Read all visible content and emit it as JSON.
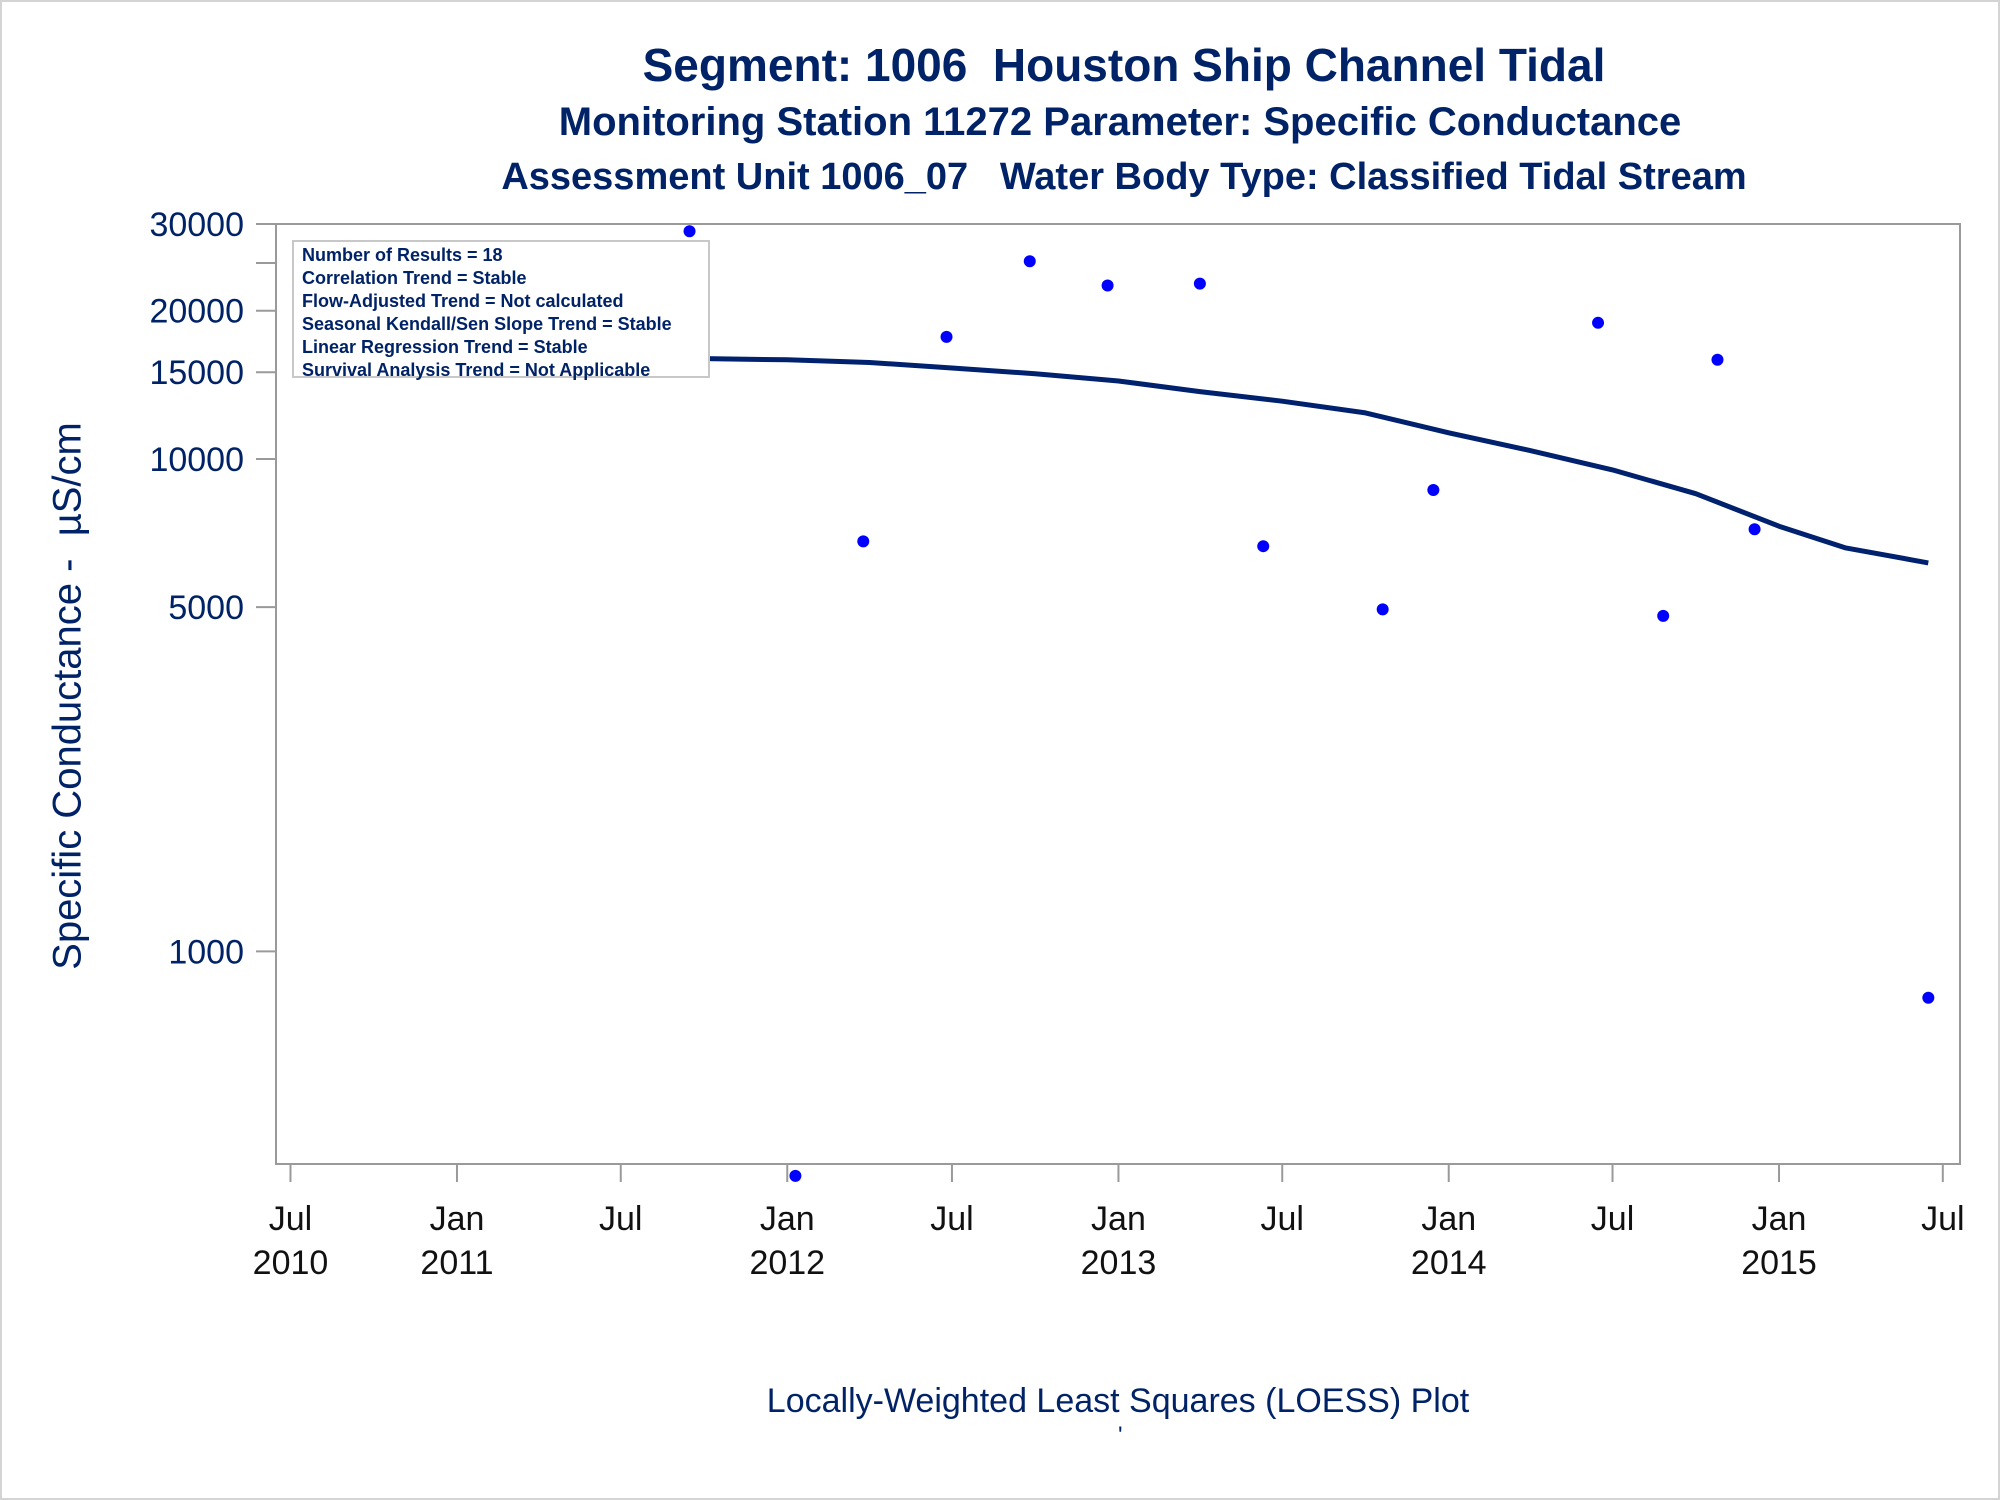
{
  "titles": {
    "line1": "Segment: 1006  Houston Ship Channel Tidal",
    "line2": "Monitoring Station 11272 Parameter: Specific Conductance",
    "line3": "Assessment Unit 1006_07   Water Body Type: Classified Tidal Stream"
  },
  "stats": {
    "line1": "Number of Results = 18",
    "line2": "Correlation Trend = Stable",
    "line3": "Flow-Adjusted Trend = Not calculated",
    "line4": "Seasonal Kendall/Sen Slope Trend = Stable",
    "line5": "Linear Regression Trend = Stable",
    "line6": "Survival Analysis Trend = Not Applicable"
  },
  "footnote": "Locally-Weighted Least Squares (LOESS) Plot",
  "footnote_mark": "'",
  "colors": {
    "text": "#002266",
    "points": "#0000ff",
    "line": "#00226e",
    "axis": "#9a9a9a"
  },
  "chart_data": {
    "type": "scatter",
    "ylabel": "Specific Conductance -  µS/cm",
    "yscale": "log",
    "ylim": [
      370,
      30000
    ],
    "xlim": [
      "2010-06-15",
      "2015-07-20"
    ],
    "y_ticks": [
      {
        "value": 30000,
        "label": "30000"
      },
      {
        "value": 25000,
        "label": ""
      },
      {
        "value": 20000,
        "label": "20000"
      },
      {
        "value": 15000,
        "label": "15000"
      },
      {
        "value": 10000,
        "label": "10000"
      },
      {
        "value": 5000,
        "label": "5000"
      },
      {
        "value": 1000,
        "label": "1000"
      }
    ],
    "x_ticks": [
      {
        "date": "2010-07-01",
        "month": "Jul",
        "year": "2010"
      },
      {
        "date": "2011-01-01",
        "month": "Jan",
        "year": "2011"
      },
      {
        "date": "2011-07-01",
        "month": "Jul",
        "year": ""
      },
      {
        "date": "2012-01-01",
        "month": "Jan",
        "year": "2012"
      },
      {
        "date": "2012-07-01",
        "month": "Jul",
        "year": ""
      },
      {
        "date": "2013-01-01",
        "month": "Jan",
        "year": "2013"
      },
      {
        "date": "2013-07-01",
        "month": "Jul",
        "year": ""
      },
      {
        "date": "2014-01-01",
        "month": "Jan",
        "year": "2014"
      },
      {
        "date": "2014-07-01",
        "month": "Jul",
        "year": ""
      },
      {
        "date": "2015-01-01",
        "month": "Jan",
        "year": "2015"
      },
      {
        "date": "2015-07-01",
        "month": "Jul",
        "year": ""
      }
    ],
    "points": [
      {
        "date": "2010-09-15",
        "value": 16000
      },
      {
        "date": "2010-12-10",
        "value": 15800
      },
      {
        "date": "2011-03-15",
        "value": 16000
      },
      {
        "date": "2011-09-15",
        "value": 29000
      },
      {
        "date": "2012-01-10",
        "value": 350
      },
      {
        "date": "2012-03-25",
        "value": 6800
      },
      {
        "date": "2012-06-25",
        "value": 17700
      },
      {
        "date": "2012-09-25",
        "value": 25200
      },
      {
        "date": "2012-12-20",
        "value": 22500
      },
      {
        "date": "2013-04-01",
        "value": 22700
      },
      {
        "date": "2013-06-10",
        "value": 6650
      },
      {
        "date": "2013-10-20",
        "value": 4950
      },
      {
        "date": "2013-12-15",
        "value": 8650
      },
      {
        "date": "2014-06-15",
        "value": 18900
      },
      {
        "date": "2014-08-26",
        "value": 4800
      },
      {
        "date": "2014-10-25",
        "value": 15900
      },
      {
        "date": "2014-12-05",
        "value": 7200
      },
      {
        "date": "2015-06-15",
        "value": 805
      }
    ],
    "loess": [
      {
        "date": "2010-09-01",
        "value": 16200
      },
      {
        "date": "2011-03-01",
        "value": 16100
      },
      {
        "date": "2011-09-15",
        "value": 16000
      },
      {
        "date": "2012-01-01",
        "value": 15900
      },
      {
        "date": "2012-04-01",
        "value": 15700
      },
      {
        "date": "2012-07-01",
        "value": 15300
      },
      {
        "date": "2012-10-01",
        "value": 14900
      },
      {
        "date": "2013-01-01",
        "value": 14400
      },
      {
        "date": "2013-04-01",
        "value": 13700
      },
      {
        "date": "2013-07-01",
        "value": 13100
      },
      {
        "date": "2013-10-01",
        "value": 12400
      },
      {
        "date": "2014-01-01",
        "value": 11300
      },
      {
        "date": "2014-04-01",
        "value": 10400
      },
      {
        "date": "2014-07-01",
        "value": 9500
      },
      {
        "date": "2014-10-01",
        "value": 8500
      },
      {
        "date": "2015-01-01",
        "value": 7300
      },
      {
        "date": "2015-03-15",
        "value": 6600
      },
      {
        "date": "2015-06-15",
        "value": 6150
      }
    ]
  }
}
